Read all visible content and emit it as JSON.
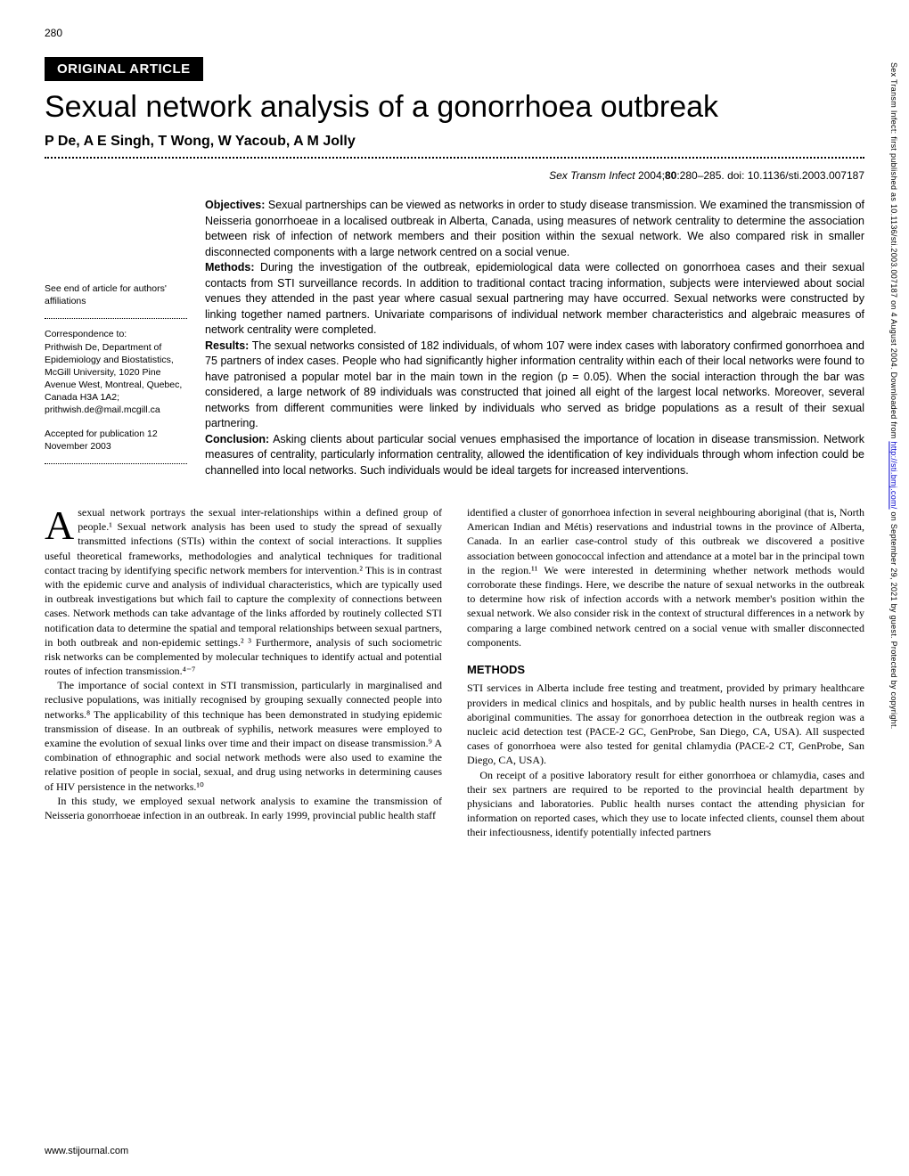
{
  "page_number": "280",
  "article_type": "ORIGINAL ARTICLE",
  "title": "Sexual network analysis of a gonorrhoea outbreak",
  "authors": "P De, A E Singh, T Wong, W Yacoub, A M Jolly",
  "citation": {
    "journal": "Sex Transm Infect",
    "year": "2004;",
    "volume": "80",
    "pages": ":280–285.",
    "doi": "doi: 10.1136/sti.2003.007187"
  },
  "sidebar": {
    "see_end": "See end of article for authors' affiliations",
    "correspondence_label": "Correspondence to:",
    "correspondence_body": "Prithwish De, Department of Epidemiology and Biostatistics, McGill University, 1020 Pine Avenue West, Montreal, Quebec, Canada H3A 1A2; prithwish.de@mail.mcgill.ca",
    "accepted": "Accepted for publication 12 November 2003"
  },
  "abstract": {
    "objectives_label": "Objectives:",
    "objectives": " Sexual partnerships can be viewed as networks in order to study disease transmission. We examined the transmission of Neisseria gonorrhoeae in a localised outbreak in Alberta, Canada, using measures of network centrality to determine the association between risk of infection of network members and their position within the sexual network. We also compared risk in smaller disconnected components with a large network centred on a social venue.",
    "methods_label": "Methods:",
    "methods": " During the investigation of the outbreak, epidemiological data were collected on gonorrhoea cases and their sexual contacts from STI surveillance records. In addition to traditional contact tracing information, subjects were interviewed about social venues they attended in the past year where casual sexual partnering may have occurred. Sexual networks were constructed by linking together named partners. Univariate comparisons of individual network member characteristics and algebraic measures of network centrality were completed.",
    "results_label": "Results:",
    "results": " The sexual networks consisted of 182 individuals, of whom 107 were index cases with laboratory confirmed gonorrhoea and 75 partners of index cases. People who had significantly higher information centrality within each of their local networks were found to have patronised a popular motel bar in the main town in the region (p = 0.05). When the social interaction through the bar was considered, a large network of 89 individuals was constructed that joined all eight of the largest local networks. Moreover, several networks from different communities were linked by individuals who served as bridge populations as a result of their sexual partnering.",
    "conclusion_label": "Conclusion:",
    "conclusion": " Asking clients about particular social venues emphasised the importance of location in disease transmission. Network measures of centrality, particularly information centrality, allowed the identification of key individuals through whom infection could be channelled into local networks. Such individuals would be ideal targets for increased interventions."
  },
  "body": {
    "col1": {
      "p1_first": "A",
      "p1": "sexual network portrays the sexual inter-relationships within a defined group of people.¹ Sexual network analysis has been used to study the spread of sexually transmitted infections (STIs) within the context of social interactions. It supplies useful theoretical frameworks, methodologies and analytical techniques for traditional contact tracing by identifying specific network members for intervention.² This is in contrast with the epidemic curve and analysis of individual characteristics, which are typically used in outbreak investigations but which fail to capture the complexity of connections between cases. Network methods can take advantage of the links afforded by routinely collected STI notification data to determine the spatial and temporal relationships between sexual partners, in both outbreak and non-epidemic settings.² ³ Furthermore, analysis of such sociometric risk networks can be complemented by molecular techniques to identify actual and potential routes of infection transmission.⁴⁻⁷",
      "p2": "The importance of social context in STI transmission, particularly in marginalised and reclusive populations, was initially recognised by grouping sexually connected people into networks.⁸ The applicability of this technique has been demonstrated in studying epidemic transmission of disease. In an outbreak of syphilis, network measures were employed to examine the evolution of sexual links over time and their impact on disease transmission.⁹ A combination of ethnographic and social network methods were also used to examine the relative position of people in social, sexual, and drug using networks in determining causes of HIV persistence in the networks.¹⁰",
      "p3": "In this study, we employed sexual network analysis to examine the transmission of Neisseria gonorrhoeae infection in an outbreak. In early 1999, provincial public health staff"
    },
    "col2": {
      "p1": "identified a cluster of gonorrhoea infection in several neighbouring aboriginal (that is, North American Indian and Métis) reservations and industrial towns in the province of Alberta, Canada. In an earlier case-control study of this outbreak we discovered a positive association between gonococcal infection and attendance at a motel bar in the principal town in the region.¹¹ We were interested in determining whether network methods would corroborate these findings. Here, we describe the nature of sexual networks in the outbreak to determine how risk of infection accords with a network member's position within the sexual network. We also consider risk in the context of structural differences in a network by comparing a large combined network centred on a social venue with smaller disconnected components.",
      "methods_head": "METHODS",
      "p2": "STI services in Alberta include free testing and treatment, provided by primary healthcare providers in medical clinics and hospitals, and by public health nurses in health centres in aboriginal communities. The assay for gonorrhoea detection in the outbreak region was a nucleic acid detection test (PACE-2 GC, GenProbe, San Diego, CA, USA). All suspected cases of gonorrhoea were also tested for genital chlamydia (PACE-2 CT, GenProbe, San Diego, CA, USA).",
      "p3": "On receipt of a positive laboratory result for either gonorrhoea or chlamydia, cases and their sex partners are required to be reported to the provincial health department by physicians and laboratories. Public health nurses contact the attending physician for information on reported cases, which they use to locate infected clients, counsel them about their infectiousness, identify potentially infected partners"
    }
  },
  "footer": "www.stijournal.com",
  "side_text": {
    "prefix": "Sex Transm Infect: first published as 10.1136/sti.2003.007187 on 4 August 2004. Downloaded from ",
    "url": "http://sti.bmj.com/",
    "suffix": " on September 29, 2021 by guest. Protected by copyright."
  }
}
